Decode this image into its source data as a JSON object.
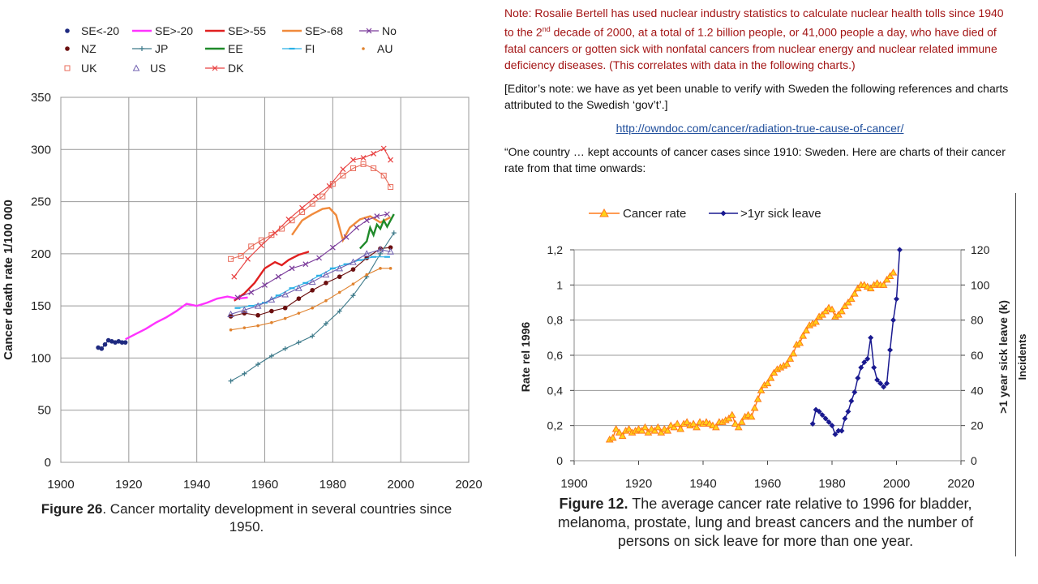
{
  "note": {
    "text_before": "Note: Rosalie Bertell has used nuclear industry statistics to calculate nuclear health tolls since 1940 to the 2",
    "superscript": "nd",
    "text_after": " decade of 2000, at a total of 1.2 billion people, or 41,000 people a day, who have died of fatal cancers or gotten sick with nonfatal cancers from nuclear energy and nuclear related immune deficiency diseases. (This correlates with data in the following charts.)"
  },
  "editor_note": "[Editor’s note: we have as yet been unable to verify with Sweden the following references and charts attributed to the Swedish ‘gov’t’.]",
  "link_text": "http://owndoc.com/cancer/radiation-true-cause-of-cancer/",
  "quote": "“One country … kept accounts of cancer cases since 1910: Sweden. Here are charts of their cancer rate from that time onwards:",
  "figure26": {
    "fig_label": "Figure 26",
    "caption": ". Cancer mortality development in several countries since 1950."
  },
  "figure12": {
    "fig_label": "Figure 12.",
    "caption": " The average cancer rate relative to 1996 for bladder, melanoma, prostate, lung and breast cancers and the number of persons on sick leave for more than one year."
  },
  "colors": {
    "se_lt20": "#1f2a80",
    "se_gt20": "#ff33ff",
    "se_gt55": "#e02020",
    "se_gt68": "#f08a3c",
    "no": "#7a3a9a",
    "nz": "#6b0f0f",
    "jp": "#3d7a8a",
    "ee": "#1f8a2a",
    "fi": "#2ab0e6",
    "au": "#e0822e",
    "uk": "#e86b5a",
    "us": "#7060b0",
    "dk": "#e84040",
    "cancer_rate": "#ff7a1a",
    "sick_leave": "#1a1a90"
  },
  "chart_data": [
    {
      "type": "line",
      "ylabel": "Cancer death rate 1/100 000",
      "xlim": [
        1900,
        2020
      ],
      "ylim": [
        0,
        350
      ],
      "xticks": [
        "1900",
        "1920",
        "1940",
        "1960",
        "1980",
        "2000",
        "2020"
      ],
      "yticks": [
        "0",
        "50",
        "100",
        "150",
        "200",
        "250",
        "300",
        "350"
      ],
      "grid": true,
      "legend_position": "top",
      "series": [
        {
          "name": "SE<-20",
          "marker": "dot",
          "x": [
            1911,
            1912,
            1913,
            1914,
            1915,
            1916,
            1917,
            1918,
            1919
          ],
          "y": [
            110,
            109,
            113,
            117,
            116,
            115,
            116,
            115,
            115
          ]
        },
        {
          "name": "SE>-20",
          "marker": "line",
          "x": [
            1919,
            1922,
            1925,
            1928,
            1931,
            1934,
            1937,
            1940,
            1943,
            1946,
            1949,
            1952,
            1955
          ],
          "y": [
            118,
            123,
            128,
            134,
            139,
            145,
            152,
            150,
            153,
            157,
            159,
            157,
            158
          ]
        },
        {
          "name": "SE>-55",
          "marker": "line",
          "x": [
            1951,
            1954,
            1957,
            1960,
            1963,
            1965,
            1967,
            1970,
            1973
          ],
          "y": [
            155,
            162,
            172,
            186,
            192,
            189,
            194,
            199,
            202
          ]
        },
        {
          "name": "SE>-68",
          "marker": "line",
          "x": [
            1968,
            1971,
            1974,
            1977,
            1979,
            1981,
            1983,
            1985,
            1988,
            1991,
            1994,
            1997
          ],
          "y": [
            218,
            232,
            238,
            243,
            244,
            237,
            213,
            225,
            233,
            236,
            230,
            235
          ]
        },
        {
          "name": "No",
          "marker": "x",
          "x": [
            1952,
            1956,
            1960,
            1964,
            1968,
            1972,
            1976,
            1980,
            1984,
            1987,
            1990,
            1993,
            1996
          ],
          "y": [
            158,
            163,
            170,
            178,
            186,
            190,
            196,
            206,
            216,
            225,
            232,
            236,
            238
          ]
        },
        {
          "name": "NZ",
          "marker": "dot",
          "x": [
            1950,
            1954,
            1958,
            1962,
            1966,
            1970,
            1974,
            1978,
            1982,
            1986,
            1990,
            1994,
            1997
          ],
          "y": [
            140,
            143,
            141,
            145,
            148,
            157,
            165,
            172,
            178,
            185,
            196,
            205,
            206
          ]
        },
        {
          "name": "JP",
          "marker": "plus",
          "x": [
            1950,
            1954,
            1958,
            1962,
            1966,
            1970,
            1974,
            1978,
            1982,
            1986,
            1990,
            1994,
            1998
          ],
          "y": [
            78,
            85,
            94,
            102,
            109,
            115,
            121,
            133,
            145,
            160,
            178,
            200,
            220
          ]
        },
        {
          "name": "EE",
          "marker": "line",
          "x": [
            1988,
            1990,
            1991,
            1992,
            1993,
            1994,
            1995,
            1996,
            1997,
            1998
          ],
          "y": [
            205,
            212,
            225,
            218,
            228,
            224,
            232,
            226,
            232,
            238
          ]
        },
        {
          "name": "FI",
          "marker": "dash",
          "x": [
            1952,
            1956,
            1960,
            1964,
            1968,
            1972,
            1976,
            1980,
            1984,
            1988,
            1992,
            1996
          ],
          "y": [
            148,
            150,
            153,
            160,
            167,
            172,
            179,
            186,
            190,
            194,
            197,
            197
          ]
        },
        {
          "name": "AU",
          "marker": "small-dot",
          "x": [
            1950,
            1954,
            1958,
            1962,
            1966,
            1970,
            1974,
            1978,
            1982,
            1986,
            1990,
            1994,
            1997
          ],
          "y": [
            127,
            129,
            131,
            134,
            138,
            143,
            148,
            155,
            163,
            171,
            180,
            186,
            186
          ]
        },
        {
          "name": "UK",
          "marker": "square",
          "x": [
            1950,
            1953,
            1956,
            1959,
            1962,
            1965,
            1968,
            1971,
            1974,
            1977,
            1980,
            1983,
            1986,
            1989,
            1992,
            1995,
            1997
          ],
          "y": [
            195,
            198,
            207,
            213,
            218,
            224,
            232,
            240,
            248,
            255,
            267,
            275,
            282,
            286,
            282,
            275,
            264
          ]
        },
        {
          "name": "US",
          "marker": "triangle",
          "x": [
            1950,
            1954,
            1958,
            1962,
            1966,
            1970,
            1974,
            1978,
            1982,
            1986,
            1990,
            1994,
            1997
          ],
          "y": [
            142,
            146,
            150,
            156,
            161,
            167,
            173,
            180,
            186,
            192,
            200,
            204,
            202
          ]
        },
        {
          "name": "DK",
          "marker": "x-line",
          "x": [
            1951,
            1955,
            1959,
            1963,
            1967,
            1971,
            1975,
            1979,
            1983,
            1986,
            1989,
            1992,
            1995,
            1997
          ],
          "y": [
            178,
            195,
            208,
            220,
            233,
            244,
            255,
            265,
            281,
            290,
            292,
            296,
            301,
            290
          ]
        }
      ]
    },
    {
      "type": "line",
      "ylabel": "Rate rel 1996",
      "y2label": ">1 year sick leave (k)",
      "y2label_extra": "Incidents",
      "xlim": [
        1900,
        2020
      ],
      "ylim": [
        0,
        1.2
      ],
      "y2lim": [
        0,
        120
      ],
      "xticks": [
        "1900",
        "1920",
        "1940",
        "1960",
        "1980",
        "2000",
        "2020"
      ],
      "yticks": [
        "0",
        "0,2",
        "0,4",
        "0,6",
        "0,8",
        "1",
        "1,2"
      ],
      "y2ticks": [
        "0",
        "20",
        "40",
        "60",
        "80",
        "100",
        "120"
      ],
      "grid": true,
      "legend_position": "top",
      "series": [
        {
          "name": "Cancer rate",
          "axis": "left",
          "marker": "triangle",
          "x": [
            1911,
            1912,
            1913,
            1914,
            1915,
            1916,
            1917,
            1918,
            1919,
            1920,
            1921,
            1922,
            1923,
            1924,
            1925,
            1926,
            1927,
            1928,
            1929,
            1930,
            1931,
            1932,
            1933,
            1934,
            1935,
            1936,
            1937,
            1938,
            1939,
            1940,
            1941,
            1942,
            1943,
            1944,
            1945,
            1946,
            1947,
            1948,
            1949,
            1950,
            1951,
            1952,
            1953,
            1954,
            1955,
            1956,
            1957,
            1958,
            1959,
            1960,
            1961,
            1962,
            1963,
            1964,
            1965,
            1966,
            1967,
            1968,
            1969,
            1970,
            1971,
            1972,
            1973,
            1974,
            1975,
            1976,
            1977,
            1978,
            1979,
            1980,
            1981,
            1982,
            1983,
            1984,
            1985,
            1986,
            1987,
            1988,
            1989,
            1990,
            1991,
            1992,
            1993,
            1994,
            1995,
            1996,
            1997,
            1998,
            1999
          ],
          "y": [
            0.12,
            0.13,
            0.18,
            0.16,
            0.14,
            0.17,
            0.18,
            0.16,
            0.17,
            0.18,
            0.17,
            0.19,
            0.16,
            0.18,
            0.17,
            0.19,
            0.16,
            0.18,
            0.17,
            0.2,
            0.19,
            0.21,
            0.18,
            0.21,
            0.22,
            0.2,
            0.21,
            0.19,
            0.22,
            0.21,
            0.22,
            0.21,
            0.2,
            0.19,
            0.22,
            0.22,
            0.23,
            0.24,
            0.26,
            0.21,
            0.19,
            0.22,
            0.25,
            0.26,
            0.25,
            0.3,
            0.35,
            0.4,
            0.43,
            0.44,
            0.47,
            0.5,
            0.52,
            0.53,
            0.54,
            0.55,
            0.58,
            0.61,
            0.66,
            0.67,
            0.71,
            0.74,
            0.77,
            0.78,
            0.79,
            0.82,
            0.83,
            0.85,
            0.87,
            0.86,
            0.82,
            0.83,
            0.85,
            0.88,
            0.9,
            0.92,
            0.95,
            0.98,
            1.0,
            1.0,
            0.99,
            0.98,
            1.0,
            1.01,
            1.0,
            1.0,
            1.03,
            1.05,
            1.07
          ]
        },
        {
          "name": ">1yr sick leave",
          "axis": "right",
          "marker": "diamond",
          "x": [
            1974,
            1975,
            1976,
            1977,
            1978,
            1979,
            1980,
            1981,
            1982,
            1983,
            1984,
            1985,
            1986,
            1987,
            1988,
            1989,
            1990,
            1991,
            1992,
            1993,
            1994,
            1995,
            1996,
            1997,
            1998,
            1999,
            2000,
            2001
          ],
          "y": [
            21,
            29,
            28,
            26,
            24,
            22,
            20,
            15,
            17,
            17,
            24,
            28,
            34,
            39,
            47,
            53,
            56,
            58,
            70,
            53,
            46,
            44,
            42,
            44,
            63,
            80,
            92,
            120
          ]
        }
      ]
    }
  ]
}
